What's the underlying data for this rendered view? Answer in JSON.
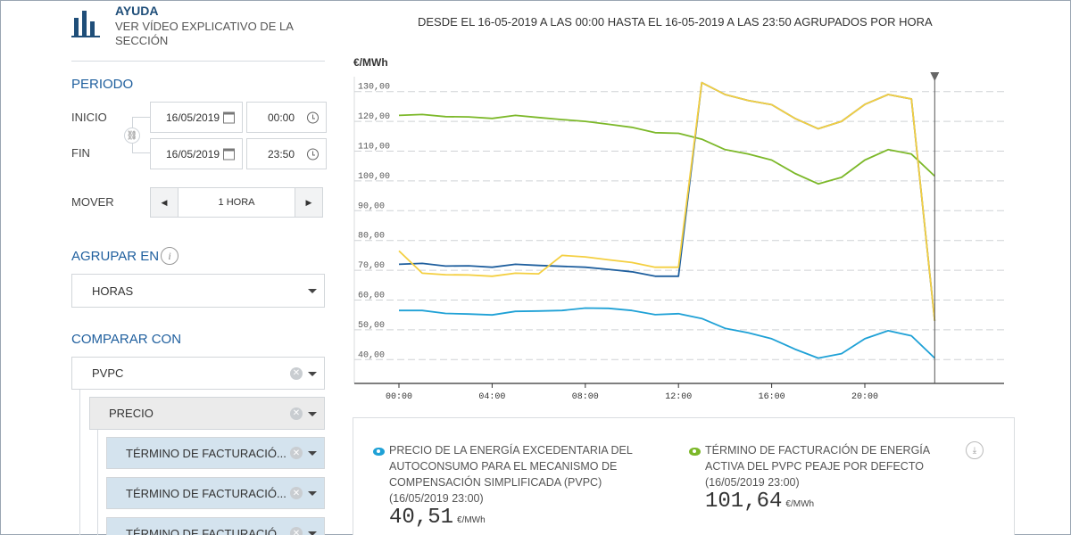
{
  "help": {
    "title": "AYUDA",
    "subtitle": "VER VÍDEO EXPLICATIVO DE LA SECCIÓN"
  },
  "period": {
    "heading": "PERIODO",
    "start_label": "INICIO",
    "start_date": "16/05/2019",
    "start_time": "00:00",
    "end_label": "FIN",
    "end_date": "16/05/2019",
    "end_time": "23:50",
    "move_label": "MOVER",
    "move_value": "1 HORA"
  },
  "group": {
    "heading": "AGRUPAR EN",
    "value": "HORAS"
  },
  "compare": {
    "heading": "COMPARAR CON",
    "items": [
      {
        "label": "PVPC"
      },
      {
        "label": "PRECIO"
      },
      {
        "label": "TÉRMINO DE FACTURACIÓ..."
      },
      {
        "label": "TÉRMINO DE FACTURACIÓ..."
      },
      {
        "label": "TÉRMINO DE FACTURACIÓ..."
      }
    ]
  },
  "header": {
    "range": "DESDE EL 16-05-2019 A LAS 00:00 HASTA EL 16-05-2019 A LAS 23:50 AGRUPADOS POR HORA"
  },
  "chart_data": {
    "type": "line",
    "ylabel": "€/MWh",
    "ylim": [
      32,
      135
    ],
    "yticks": [
      "40,00",
      "50,00",
      "60,00",
      "70,00",
      "80,00",
      "90,00",
      "100,00",
      "110,00",
      "120,00",
      "130,00"
    ],
    "ytick_values": [
      40,
      50,
      60,
      70,
      80,
      90,
      100,
      110,
      120,
      130
    ],
    "xticks": [
      "00:00",
      "04:00",
      "08:00",
      "12:00",
      "16:00",
      "20:00"
    ],
    "xtick_hours": [
      0,
      4,
      8,
      12,
      16,
      20
    ],
    "x_hours": [
      0,
      1,
      2,
      3,
      4,
      5,
      6,
      7,
      8,
      9,
      10,
      11,
      12,
      13,
      14,
      15,
      16,
      17,
      18,
      19,
      20,
      21,
      22,
      23
    ],
    "cursor_hour": 23,
    "series": [
      {
        "color": "#7cb829",
        "values": [
          122,
          122.3,
          121.6,
          121.5,
          121,
          122,
          121.3,
          120.6,
          120,
          119,
          118,
          116.2,
          116,
          114,
          110.5,
          109,
          107,
          102.5,
          99,
          101.2,
          107,
          110.5,
          109,
          101.6
        ]
      },
      {
        "color": "#1f5f9e",
        "values": [
          72,
          72.3,
          71.4,
          71.5,
          71,
          72,
          71.6,
          71.3,
          71,
          70.3,
          69.5,
          68,
          68,
          133,
          129,
          127,
          125.6,
          121,
          117.5,
          120,
          125.7,
          129,
          127.5,
          53
        ]
      },
      {
        "color": "#f4cf40",
        "values": [
          76.5,
          69,
          68.5,
          68.4,
          68,
          69,
          68.8,
          75,
          74.5,
          73.5,
          72.6,
          71,
          71,
          133,
          129,
          127,
          125.6,
          121,
          117.5,
          120,
          125.7,
          129,
          127.5,
          53
        ]
      },
      {
        "color": "#1fa1d6",
        "values": [
          56.5,
          56.5,
          55.5,
          55.3,
          55,
          56.2,
          56.3,
          56.5,
          57.3,
          57.2,
          56.5,
          55.1,
          55.4,
          53.8,
          50.5,
          49,
          47,
          43.5,
          40.5,
          42,
          47,
          49.7,
          48,
          40.5
        ]
      }
    ]
  },
  "legend": {
    "item1": {
      "text": "PRECIO DE LA ENERGÍA EXCEDENTARIA DEL AUTOCONSUMO PARA EL MECANISMO DE COMPENSACIÓN SIMPLIFICADA (PVPC)",
      "date": "(16/05/2019 23:00)",
      "value": "40,51",
      "unit": "€/MWh",
      "color": "#1fa1d6"
    },
    "item2": {
      "text": "TÉRMINO DE FACTURACIÓN DE ENERGÍA ACTIVA DEL PVPC PEAJE POR DEFECTO",
      "date": "(16/05/2019 23:00)",
      "value": "101,64",
      "unit": "€/MWh",
      "color": "#7cb829"
    }
  },
  "icons": {
    "logo": "bar-chart-logo-icon",
    "calendar": "calendar-icon",
    "clock": "clock-icon",
    "link": "link-icon",
    "info": "info-icon",
    "eye": "eye-icon",
    "download": "download-icon"
  }
}
